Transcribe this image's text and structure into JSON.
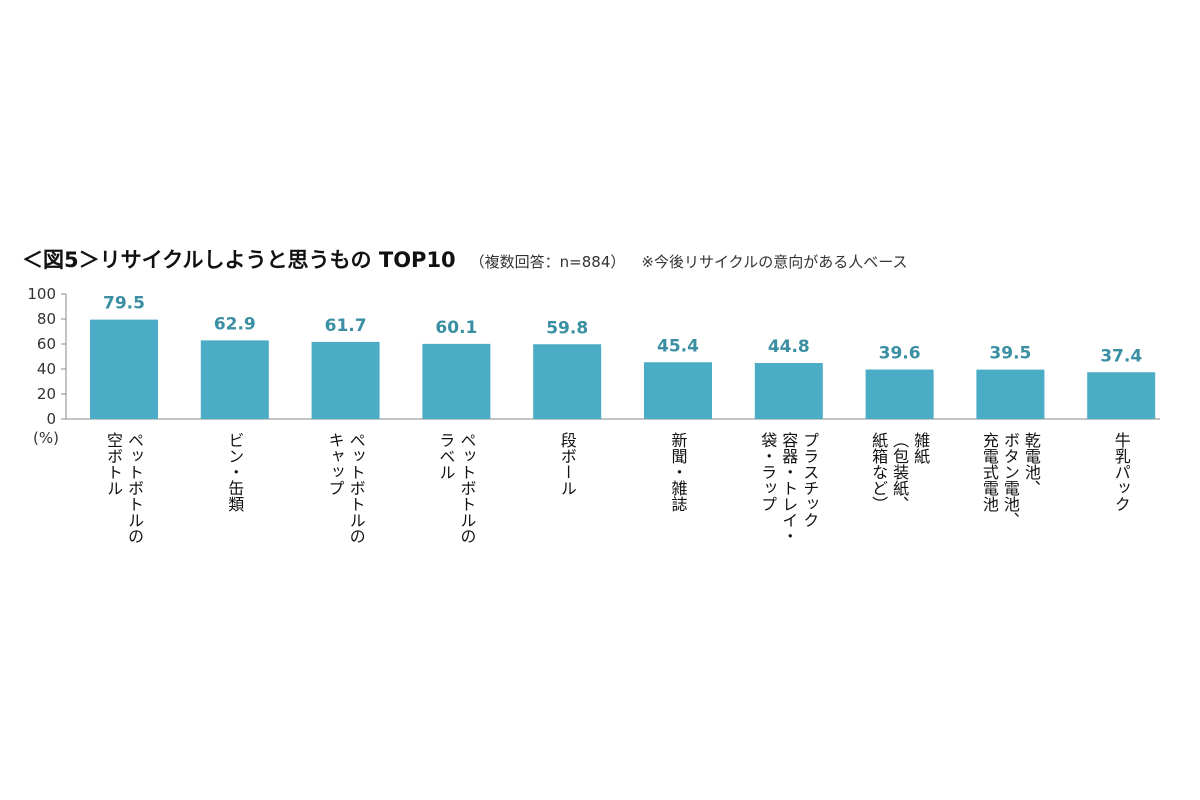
{
  "title": "＜図5＞リサイクルしようと思うもの TOP10",
  "subtitle": "（複数回答：n=884）",
  "note": "※今後リサイクルの意向がある人ベース",
  "chart_data": {
    "type": "bar",
    "categories": [
      [
        "ペットボトルの",
        "空ボトル"
      ],
      [
        "ビン・缶類"
      ],
      [
        "ペットボトルの",
        "キャップ"
      ],
      [
        "ペットボトルの",
        "ラベル"
      ],
      [
        "段ボール"
      ],
      [
        "新聞・雑誌"
      ],
      [
        "プラスチック",
        "容器・トレイ・",
        "袋・ラップ"
      ],
      [
        "雑紙",
        "（包装紙、",
        "紙箱など）"
      ],
      [
        "乾電池、",
        "ボタン電池、",
        "充電式電池"
      ],
      [
        "牛乳パック"
      ]
    ],
    "values": [
      79.5,
      62.9,
      61.7,
      60.1,
      59.8,
      45.4,
      44.8,
      39.6,
      39.5,
      37.4
    ],
    "value_labels": [
      "79.5",
      "62.9",
      "61.7",
      "60.1",
      "59.8",
      "45.4",
      "44.8",
      "39.6",
      "39.5",
      "37.4"
    ],
    "ylim": [
      0,
      100
    ],
    "yticks": [
      "100",
      "80",
      "60",
      "40",
      "20",
      "0"
    ],
    "ytick_values": [
      100,
      80,
      60,
      40,
      20,
      0
    ],
    "yunit": "(%)",
    "bar_color": "#4bacc6",
    "label_color": "#3a8fa3",
    "grid": false,
    "legend": "none"
  }
}
